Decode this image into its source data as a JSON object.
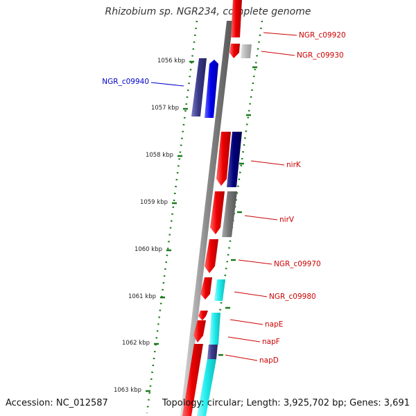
{
  "title": "Rhizobium sp. NGR234, complete genome",
  "footer": {
    "accession_label": "Accession:",
    "accession": "NC_012587",
    "topology_label": "Topology:",
    "topology": "circular",
    "length_label": "Length:",
    "length": "3,925,702 bp",
    "genes_label": "Genes:",
    "genes": "3,691"
  },
  "colors": {
    "backbone": "#8c8c8c",
    "tick": "#1a7a1a",
    "label_red": "#cc0000",
    "label_blue": "#0000cc",
    "gene_red": "#ee0000",
    "gene_blue": "#0000ee",
    "gene_navy": "#00007a",
    "gene_indigo": "#3a3a8a",
    "gene_gray": "#777777",
    "gene_lightgray": "#bbbbbb",
    "gene_cyan": "#22eeee"
  },
  "ticks": [
    "1056 kbp",
    "1057 kbp",
    "1058 kbp",
    "1059 kbp",
    "1060 kbp",
    "1061 kbp",
    "1062 kbp",
    "1063 kbp"
  ],
  "gene_labels": [
    {
      "id": "ngr-c09920",
      "text": "NGR_c09920",
      "color": "#cc0000"
    },
    {
      "id": "ngr-c09930",
      "text": "NGR_c09930",
      "color": "#cc0000"
    },
    {
      "id": "ngr-c09940",
      "text": "NGR_c09940",
      "color": "#0000cc"
    },
    {
      "id": "nirk",
      "text": "nirK",
      "color": "#cc0000"
    },
    {
      "id": "nirv",
      "text": "nirV",
      "color": "#cc0000"
    },
    {
      "id": "ngr-c09970",
      "text": "NGR_c09970",
      "color": "#cc0000"
    },
    {
      "id": "ngr-c09980",
      "text": "NGR_c09980",
      "color": "#cc0000"
    },
    {
      "id": "nape",
      "text": "napE",
      "color": "#cc0000"
    },
    {
      "id": "napf",
      "text": "napF",
      "color": "#cc0000"
    },
    {
      "id": "napd",
      "text": "napD",
      "color": "#cc0000"
    }
  ]
}
